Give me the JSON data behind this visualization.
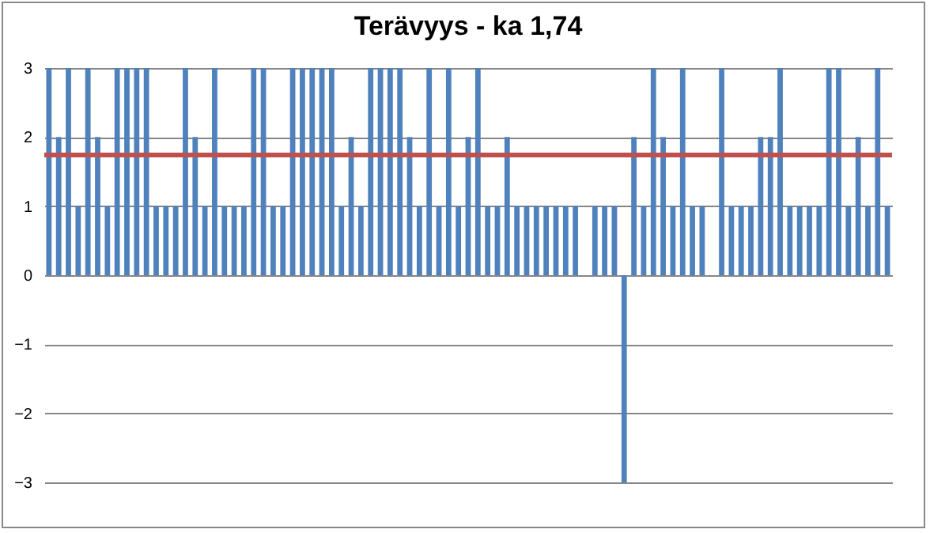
{
  "chart_data": {
    "type": "bar",
    "title": "Terävyys -  ka 1,74",
    "categories": [
      null,
      null,
      null,
      null,
      null,
      null,
      null,
      null,
      null,
      null,
      null,
      null,
      null,
      null,
      null,
      null,
      null,
      null,
      null,
      null,
      null,
      null,
      null,
      null,
      null,
      null,
      null,
      null,
      null,
      null,
      null,
      null,
      null,
      null,
      null,
      null,
      null,
      null,
      null,
      null,
      null,
      null,
      null,
      null,
      null,
      null,
      null,
      null,
      null,
      null,
      null,
      null,
      null,
      null,
      null,
      null,
      null,
      null,
      null,
      null,
      null,
      null,
      null,
      null,
      null,
      null,
      null,
      null,
      null,
      null,
      null,
      null,
      null,
      null,
      null,
      null,
      null,
      null,
      null,
      null,
      null,
      null,
      null,
      null,
      null,
      null,
      null
    ],
    "values": [
      3,
      2,
      3,
      1,
      3,
      2,
      1,
      3,
      3,
      3,
      3,
      1,
      1,
      1,
      3,
      2,
      1,
      3,
      1,
      1,
      1,
      3,
      3,
      1,
      1,
      3,
      3,
      3,
      3,
      3,
      1,
      2,
      1,
      3,
      3,
      3,
      3,
      2,
      1,
      3,
      1,
      3,
      1,
      2,
      3,
      1,
      1,
      2,
      1,
      1,
      1,
      1,
      1,
      1,
      1,
      0,
      1,
      1,
      1,
      -3,
      2,
      1,
      3,
      2,
      1,
      3,
      1,
      1,
      0,
      3,
      1,
      1,
      1,
      2,
      2,
      3,
      1,
      1,
      1,
      1,
      3,
      3,
      1,
      2,
      1,
      3,
      1
    ],
    "color": "#4f81bd",
    "ylim": [
      -3,
      3
    ],
    "yticks": [
      -3,
      -2,
      -1,
      0,
      1,
      2,
      3
    ],
    "grid": "y",
    "tick_labels": "y",
    "ref_lines": [
      {
        "axis": "y",
        "value": 1.74,
        "color": "#c0504d"
      }
    ]
  }
}
